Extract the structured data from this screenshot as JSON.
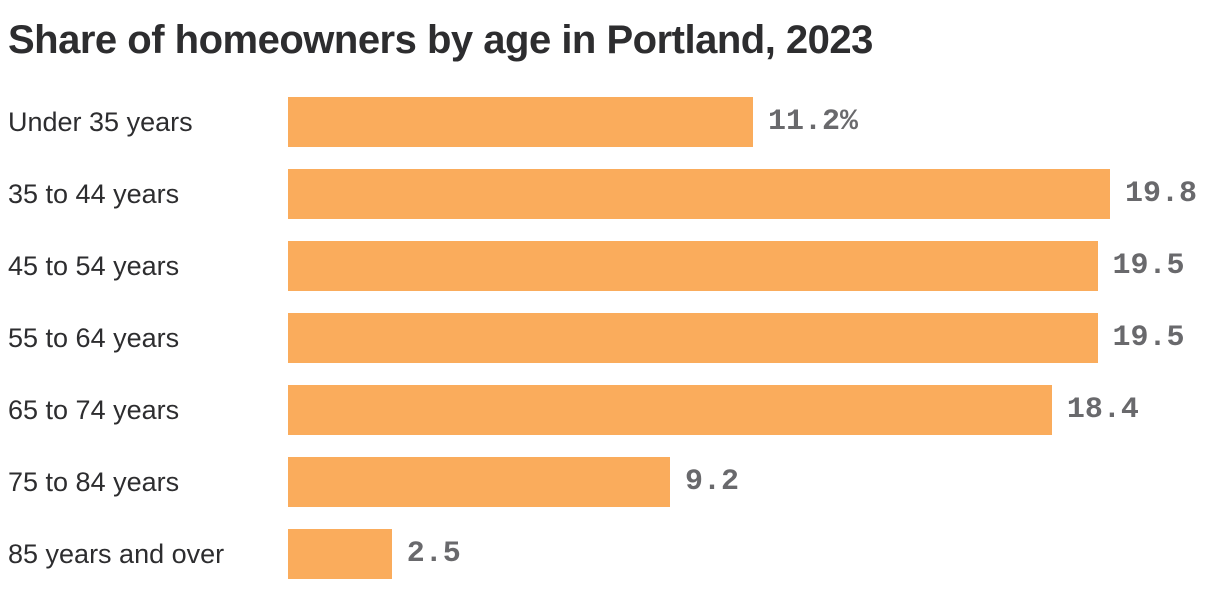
{
  "chart_data": {
    "type": "bar",
    "orientation": "horizontal",
    "title": "Share of homeowners by age in Portland, 2023",
    "categories": [
      "Under 35 years",
      "35 to 44 years",
      "45 to 54 years",
      "55 to 64 years",
      "65 to 74 years",
      "75 to 84 years",
      "85 years and over"
    ],
    "values": [
      11.2,
      19.8,
      19.5,
      19.5,
      18.4,
      9.2,
      2.5
    ],
    "value_labels": [
      "11.2%",
      "19.8",
      "19.5",
      "19.5",
      "18.4",
      "9.2",
      "2.5"
    ],
    "unit": "percent",
    "xlim": [
      0,
      19.8
    ],
    "grid": false,
    "legend": false,
    "colors": {
      "bar": "#faac5c",
      "value_label": "#69696c",
      "category_label": "#2d2d2f",
      "title": "#2d2d2f",
      "background": "#ffffff"
    }
  }
}
